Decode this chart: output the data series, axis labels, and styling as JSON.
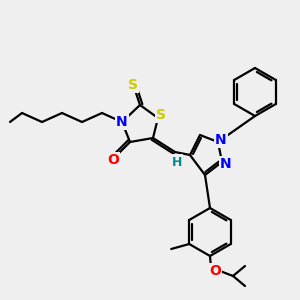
{
  "bg_color": "#efefef",
  "bond_color": "#000000",
  "bond_width": 1.6,
  "atom_colors": {
    "N": "#0000ff",
    "S": "#cccc00",
    "O": "#ff0000",
    "H": "#008b8b",
    "C": "#000000"
  },
  "figsize": [
    3.0,
    3.0
  ],
  "dpi": 100
}
